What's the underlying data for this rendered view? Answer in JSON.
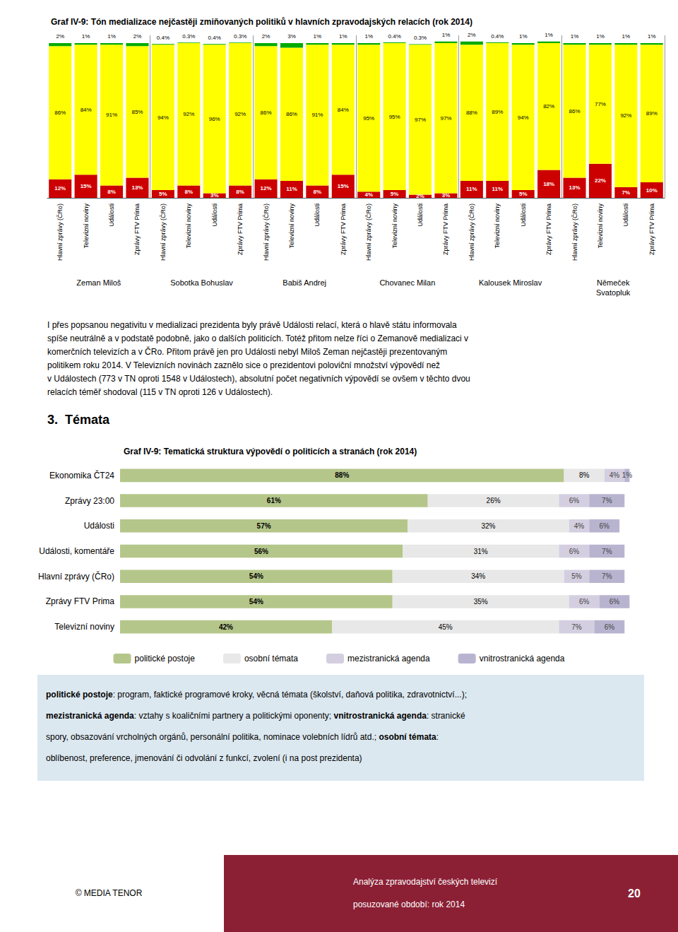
{
  "chart_data": [
    {
      "type": "bar",
      "title": "Graf IV-9: Tón medializace nejčastěji zmiňovaných politiků v hlavních zpravodajských relacích (rok 2014)",
      "stacked": true,
      "categories": [
        "Hlavní zprávy (ČRo)",
        "Televizní noviny",
        "Události",
        "Zprávy FTV Prima",
        "Hlavní zprávy (ČRo)",
        "Televizní noviny",
        "Události",
        "Zprávy FTV Prima",
        "Hlavní zprávy (ČRo)",
        "Televizní noviny",
        "Události",
        "Zprávy FTV Prima",
        "Hlavní zprávy (ČRo)",
        "Televizní noviny",
        "Události",
        "Zprávy FTV Prima",
        "Hlavní zprávy (ČRo)",
        "Televizní noviny",
        "Události",
        "Zprávy FTV Prima",
        "Hlavní zprávy (ČRo)",
        "Televizní noviny",
        "Události",
        "Zprávy FTV Prima"
      ],
      "annotations": [
        "Zeman Miloš",
        "Sobotka Bohuslav",
        "Babiš Andrej",
        "Chovanec Milan",
        "Kalousek Miroslav",
        "Němeček\nSvatopluk"
      ],
      "series": [
        {
          "color": "#cc0000",
          "values": [
            12,
            15,
            8,
            13,
            5,
            8,
            3,
            8,
            12,
            11,
            8,
            15,
            4,
            5,
            2,
            3,
            11,
            11,
            5,
            18,
            13,
            22,
            7,
            10
          ],
          "value_labels": [
            "12%",
            "15%",
            "8%",
            "13%",
            "5%",
            "8%",
            "3%",
            "8%",
            "12%",
            "11%",
            "8%",
            "15%",
            "4%",
            "5%",
            "2%",
            "3%",
            "11%",
            "11%",
            "5%",
            "18%",
            "13%",
            "22%",
            "7%",
            "10%"
          ]
        },
        {
          "color": "#ffff00",
          "values": [
            86,
            84,
            91,
            85,
            94,
            92,
            96,
            92,
            86,
            86,
            91,
            84,
            95,
            95,
            97,
            97,
            88,
            89,
            94,
            82,
            86,
            77,
            92,
            89
          ],
          "value_labels": [
            "86%",
            "84%",
            "91%",
            "85%",
            "94%",
            "92%",
            "96%",
            "92%",
            "86%",
            "86%",
            "91%",
            "84%",
            "95%",
            "95%",
            "97%",
            "97%",
            "88%",
            "89%",
            "94%",
            "82%",
            "86%",
            "77%",
            "92%",
            "89%"
          ]
        },
        {
          "color": "#00aa00",
          "values": [
            2,
            1,
            1,
            2,
            0.4,
            0.3,
            0.4,
            0.3,
            2,
            3,
            1,
            1,
            1,
            0.4,
            0.3,
            1,
            2,
            0.4,
            1,
            1,
            1,
            1,
            1,
            1
          ],
          "value_labels": [
            "2%",
            "1%",
            "1%",
            "2%",
            "0.4%",
            "0.3%",
            "0.4%",
            "0.3%",
            "2%",
            "3%",
            "1%",
            "1%",
            "1%",
            "0.4%",
            "0.3%",
            "1%",
            "2%",
            "0.4%",
            "1%",
            "1%",
            "1%",
            "1%",
            "1%",
            "1%"
          ]
        }
      ],
      "ylim": [
        0,
        105
      ],
      "tick_labels": "x",
      "data_labels": true,
      "grid": false
    },
    {
      "type": "bar",
      "title": "Graf IV-9: Tematická struktura výpovědí o politicích a stranách (rok 2014)",
      "orientation": "horizontal",
      "stacked": true,
      "categories": [
        "Ekonomika ČT24",
        "Zprávy 23:00",
        "Události",
        "Události, komentáře",
        "Hlavní zprávy (ČRo)",
        "Zprávy FTV Prima",
        "Televizní noviny"
      ],
      "series": [
        {
          "name": "politické postoje",
          "color": "#b5c68a",
          "values": [
            88,
            61,
            57,
            56,
            54,
            54,
            42
          ],
          "value_labels": [
            "88%",
            "61%",
            "57%",
            "56%",
            "54%",
            "54%",
            "42%"
          ]
        },
        {
          "name": "osobní témata",
          "color": "#e8e8e8",
          "values": [
            8,
            26,
            32,
            31,
            34,
            35,
            45
          ],
          "value_labels": [
            "8%",
            "26%",
            "32%",
            "31%",
            "34%",
            "35%",
            "45%"
          ]
        },
        {
          "name": "mezistranická agenda",
          "color": "#d4cfe0",
          "values": [
            4,
            6,
            4,
            6,
            5,
            6,
            7
          ],
          "value_labels": [
            "4%",
            "6%",
            "4%",
            "6%",
            "5%",
            "6%",
            "7%"
          ]
        },
        {
          "name": "vnitrostranická agenda",
          "color": "#b8b4d0",
          "values": [
            1,
            7,
            6,
            7,
            7,
            6,
            6
          ],
          "value_labels": [
            "1%",
            "7%",
            "6%",
            "7%",
            "7%",
            "6%",
            "6%"
          ]
        }
      ],
      "xlim": [
        0,
        105
      ],
      "tick_labels": "y",
      "data_labels": true,
      "legend": "bottom",
      "grid": false
    }
  ],
  "section_title": "3.  Témata",
  "paragraph": "I přes popsanou negativitu v medializaci prezidenta byly právě Události relací, která o hlavě státu informovala\nspíše neutrálně a v podstatě podobně, jako o dalších politicích. Totéž přitom nelze říci o Zemanově medializaci v\nkomerčních televizích a v ČRo. Přitom právě jen pro Události nebyl Miloš Zeman nejčastěji prezentovaným\npolitikem roku 2014. V Televizních novinách zaznělo sice o prezidentovi poloviční množství výpovědí než\nv Událostech (773 v TN oproti 1548 v Událostech), absolutní počet negativních výpovědí se ovšem v těchto dvou\nrelacích téměř shodoval (115 v TN oproti 126 v Událostech).",
  "footnote": {
    "color": "#dce8f0",
    "lines": [
      [
        "politické postoje",
        ": program, faktické programové kroky, věcná témata (školství, daňová politika, zdravotnictví...);"
      ],
      [
        "mezistranická agenda",
        ": vztahy s koaličními partnery a politickými oponenty; ",
        "vnitrostranická agenda",
        ": stranické"
      ],
      [
        "spory, obsazování vrcholných orgánů, personální politika, nominace volebních lídrů atd.; ",
        "osobní témata",
        ":"
      ],
      [
        "oblíbenost, preference, jmenování či odvolání z funkcí, zvolení (i na post prezidenta)"
      ]
    ]
  },
  "footer": {
    "left": "© MEDIA TENOR",
    "color": "#8b2035",
    "lines": [
      "Analýza zpravodajství českých televizí",
      "posuzované období: rok 2014"
    ],
    "page": "20"
  }
}
